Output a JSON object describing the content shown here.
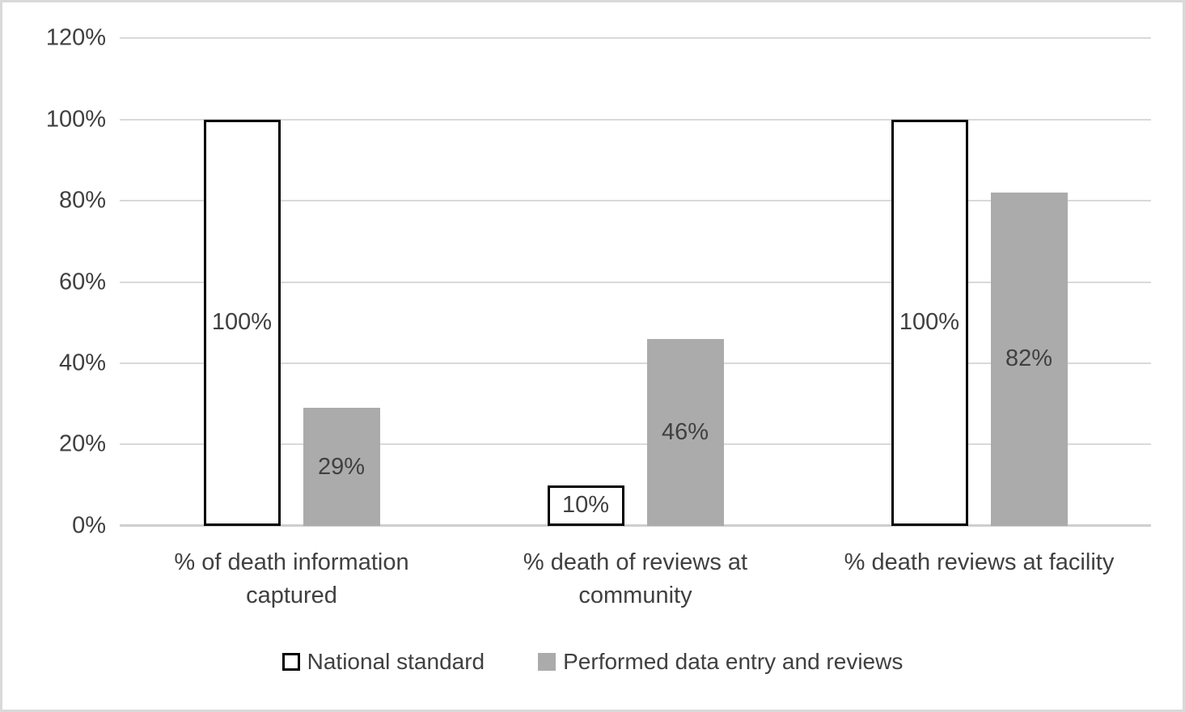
{
  "chart_data": {
    "type": "bar",
    "title": "",
    "categories": [
      "% of death information captured",
      "% death of reviews at community",
      "% death reviews at facility"
    ],
    "series": [
      {
        "name": "National standard",
        "values": [
          100,
          10,
          100
        ],
        "labels": [
          "100%",
          "10%",
          "100%"
        ],
        "fill": "#ffffff",
        "border": "#000000"
      },
      {
        "name": "Performed data entry and reviews",
        "values": [
          29,
          46,
          82
        ],
        "labels": [
          "29%",
          "46%",
          "82%"
        ],
        "fill": "#ababab",
        "border": "#ababab"
      }
    ],
    "ylim": [
      0,
      120
    ],
    "yticks": [
      "0%",
      "20%",
      "40%",
      "60%",
      "80%",
      "100%",
      "120%"
    ],
    "xlabel": "",
    "ylabel": "",
    "grid": true,
    "legend_position": "bottom",
    "colors": {
      "text": "#404040",
      "gridline": "#d9d9d9",
      "axis_line": "#d0cece",
      "gray_fill": "#ababab",
      "bar_outline": "#000000",
      "frame_border": "#d9d9d9",
      "background": "#ffffff"
    }
  }
}
